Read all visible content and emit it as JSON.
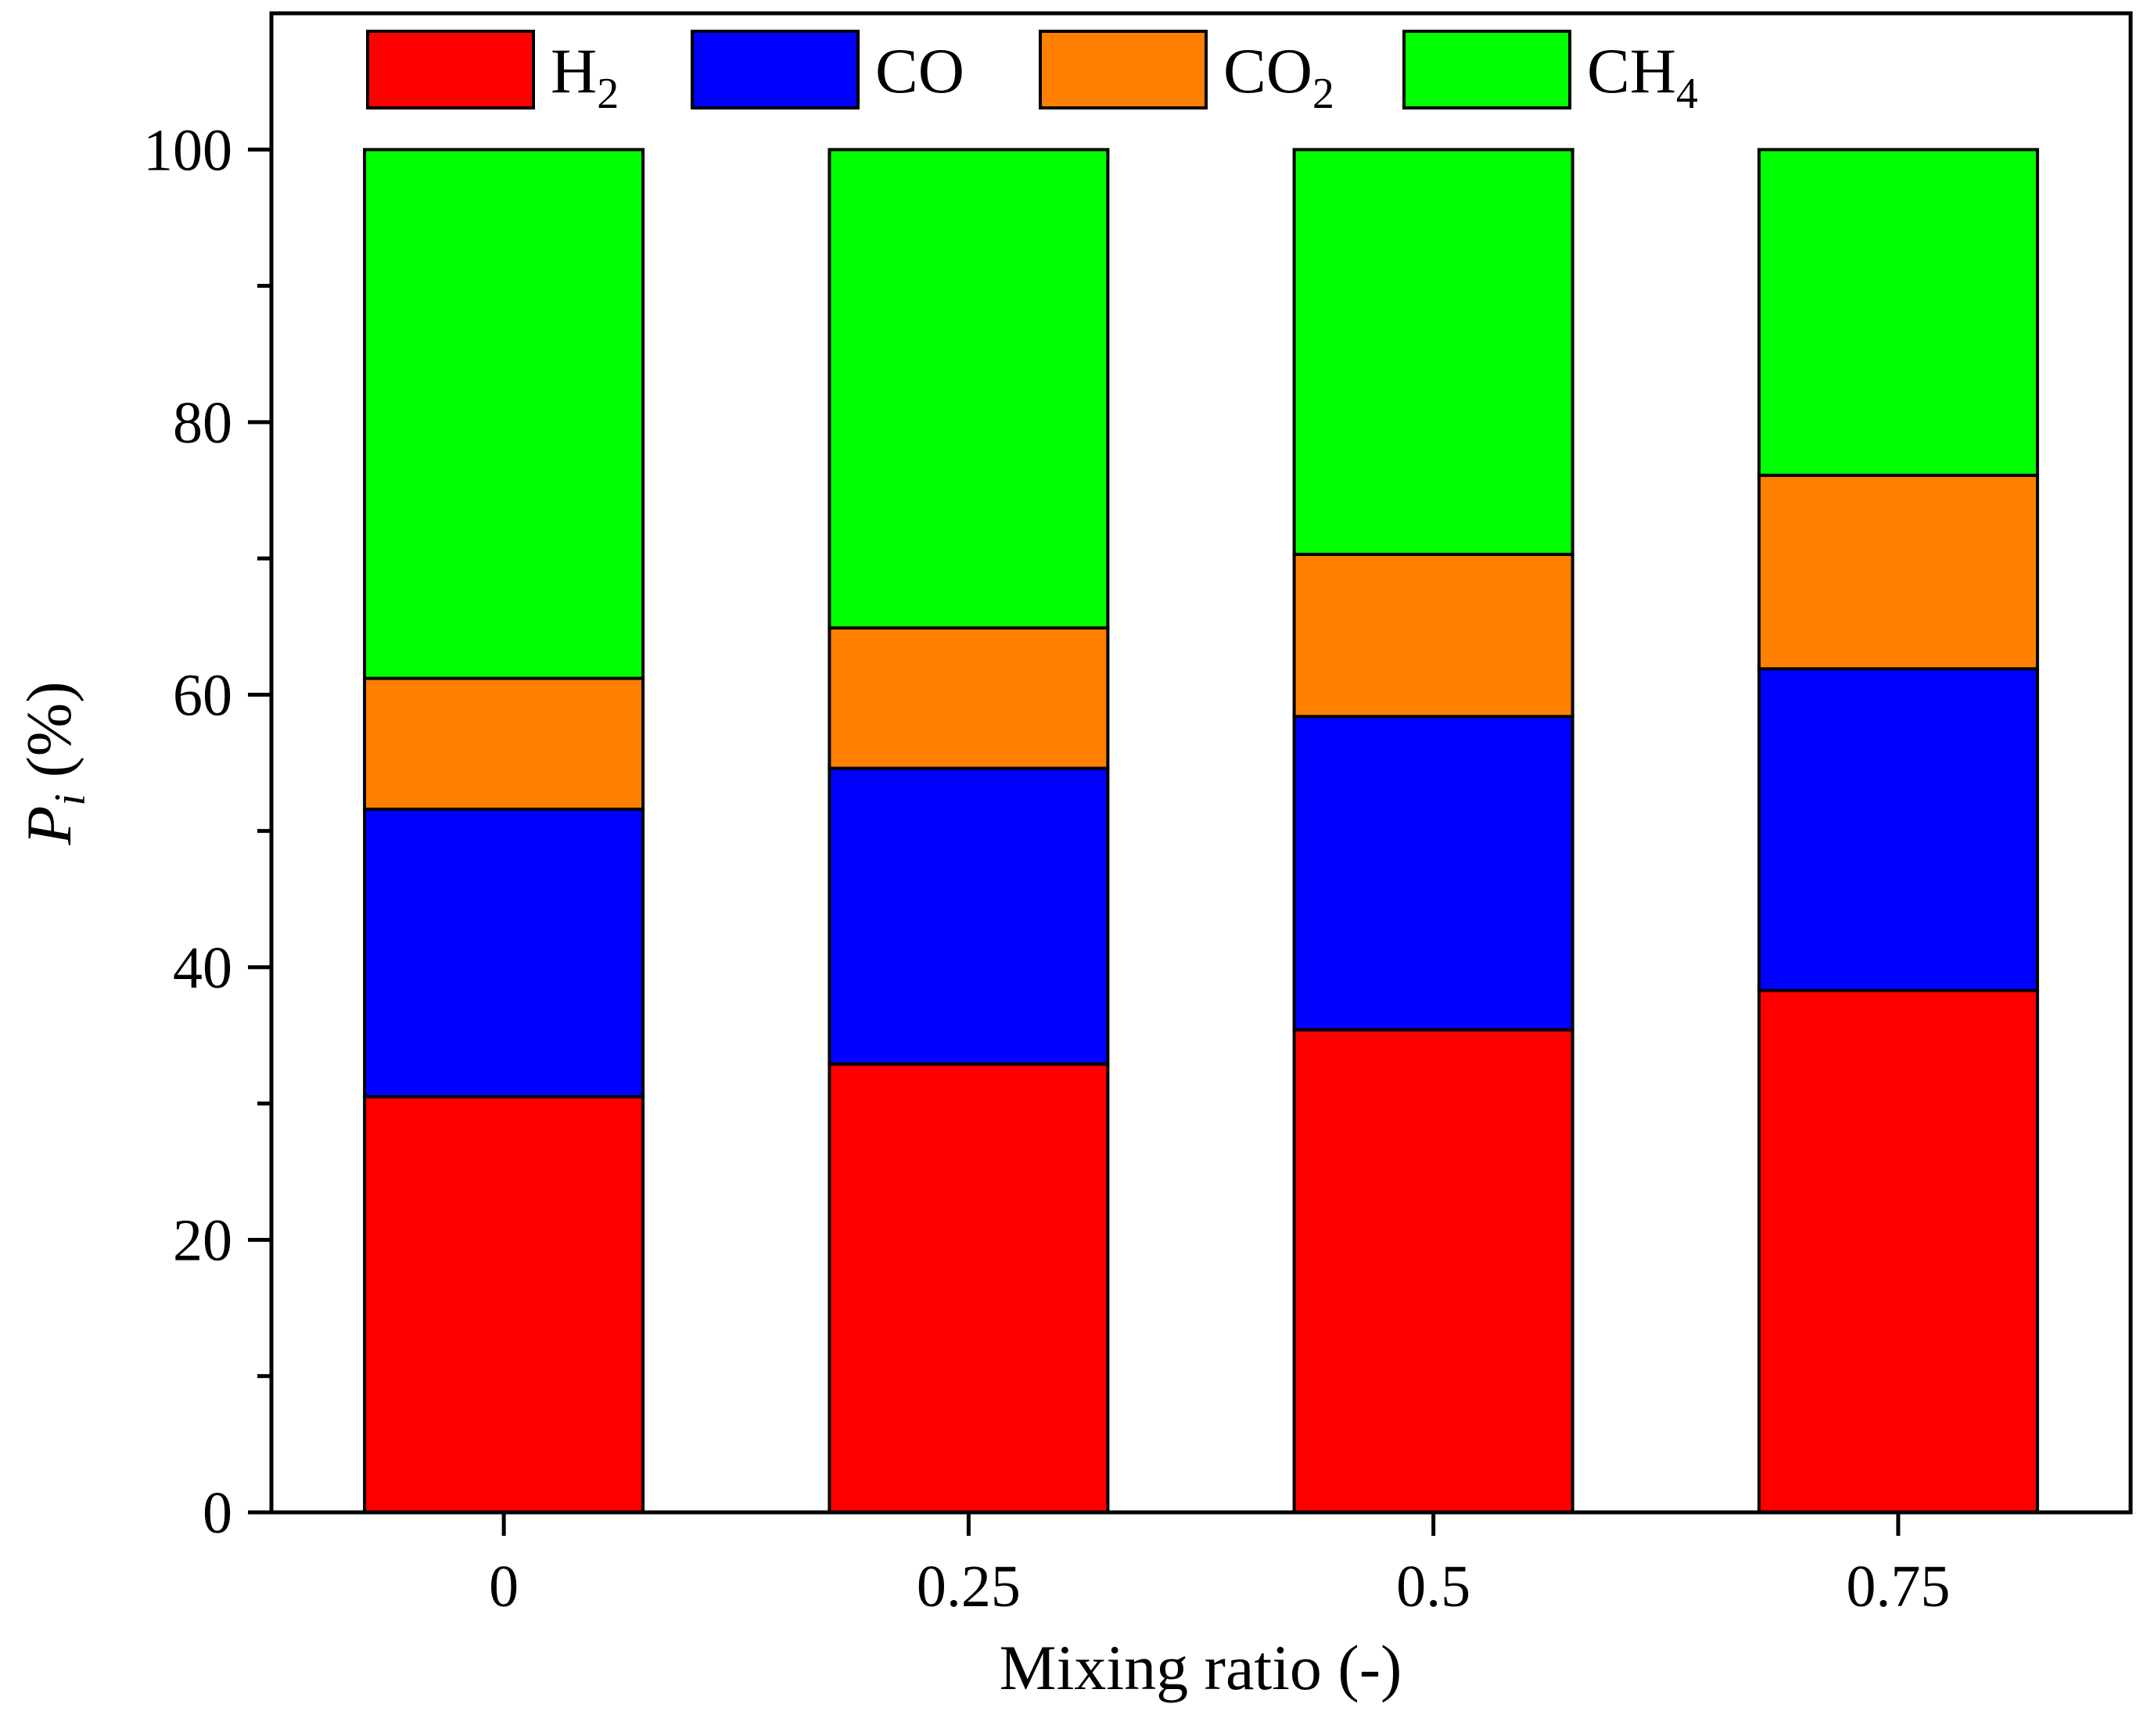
{
  "chart_data": {
    "type": "bar",
    "stacked": true,
    "categories": [
      "0",
      "0.25",
      "0.5",
      "0.75"
    ],
    "series": [
      {
        "name": "H2",
        "label_main": "H",
        "label_sub": "2",
        "color": "#ff0000",
        "values": [
          30.5,
          32.9,
          35.4,
          38.3
        ]
      },
      {
        "name": "CO",
        "label_main": "CO",
        "label_sub": "",
        "color": "#0000ff",
        "values": [
          21.1,
          21.7,
          23.0,
          23.6
        ]
      },
      {
        "name": "CO2",
        "label_main": "CO",
        "label_sub": "2",
        "color": "#ff8000",
        "values": [
          9.6,
          10.3,
          11.9,
          14.2
        ]
      },
      {
        "name": "CH4",
        "label_main": "CH",
        "label_sub": "4",
        "color": "#00ff00",
        "values": [
          38.8,
          35.1,
          29.7,
          23.9
        ]
      }
    ],
    "xlabel": "Mixing ratio (-)",
    "ylabel": {
      "main": "P",
      "sub": "i",
      "rest": " (%)"
    },
    "ylim": [
      0,
      110
    ],
    "yticks": [
      "0",
      "20",
      "40",
      "60",
      "80",
      "100"
    ],
    "grid": false,
    "legend": "top, horizontal"
  }
}
